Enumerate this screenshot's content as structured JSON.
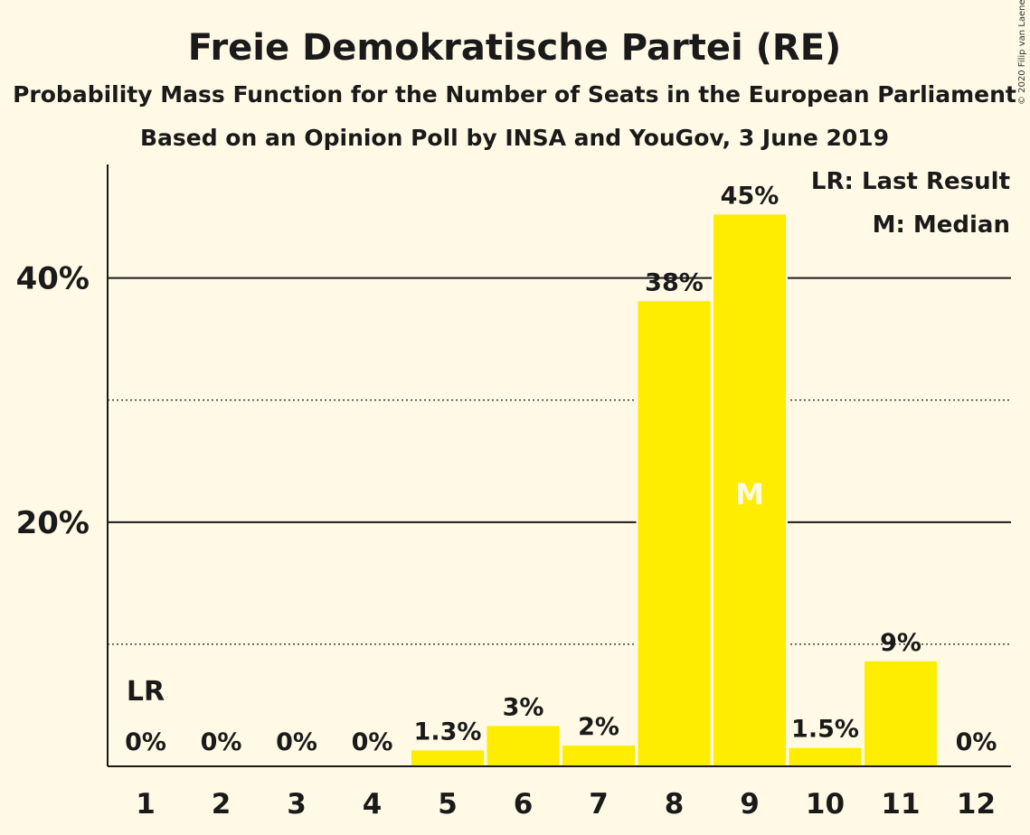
{
  "title": "Freie Demokratische Partei (RE)",
  "subtitle1": "Probability Mass Function for the Number of Seats in the European Parliament",
  "subtitle2": "Based on an Opinion Poll by INSA and YouGov, 3 June 2019",
  "copyright": "© 2020 Filip van Laenen",
  "legend": {
    "lr": "LR: Last Result",
    "m": "M: Median"
  },
  "colors": {
    "background": "#fff9e5",
    "bar": "#ffed00",
    "text": "#1a1a1a"
  },
  "chart_data": {
    "type": "bar",
    "title": "Freie Demokratische Partei (RE)",
    "categories": [
      "1",
      "2",
      "3",
      "4",
      "5",
      "6",
      "7",
      "8",
      "9",
      "10",
      "11",
      "12"
    ],
    "values": [
      0,
      0,
      0,
      0,
      1.3,
      3.3,
      1.7,
      38.1,
      45.2,
      1.5,
      8.6,
      0
    ],
    "labels": [
      "0%",
      "0%",
      "0%",
      "0%",
      "1.3%",
      "3%",
      "2%",
      "38%",
      "45%",
      "1.5%",
      "9%",
      "0%"
    ],
    "ylim": [
      0,
      49.3
    ],
    "yticks_major": [
      20,
      40
    ],
    "ytick_labels": [
      "20%",
      "40%"
    ],
    "yticks_minor": [
      10,
      30
    ],
    "last_result_seat": "1",
    "last_result_label": "LR",
    "median_seat": "9",
    "median_label": "M",
    "legend_position": "top-right"
  }
}
